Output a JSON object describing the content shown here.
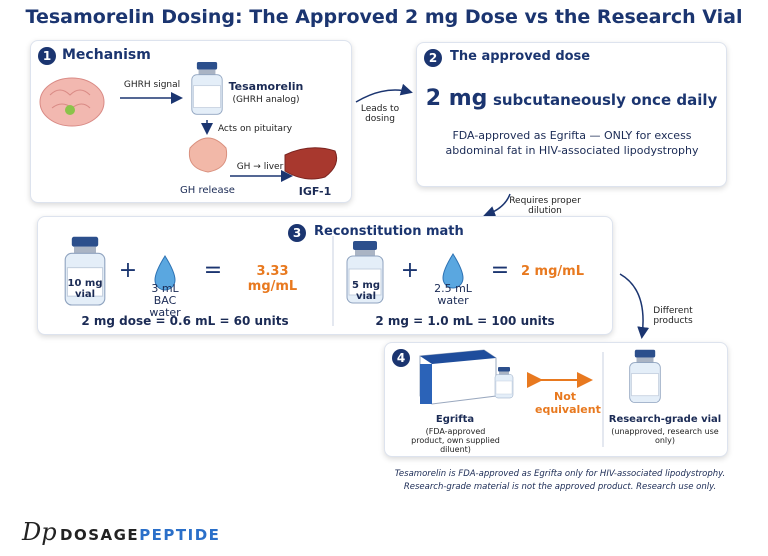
{
  "header": {
    "title": "Tesamorelin Dosing: The Approved 2 mg Dose vs the Research Vial"
  },
  "panels": [
    {
      "number": "1",
      "heading": "Mechanism",
      "labels": [
        "GHRH signal",
        "Tesamorelin",
        "(GHRH analog)",
        "Acts on pituitary",
        "GH release",
        "GH → liver",
        "IGF-1"
      ]
    },
    {
      "number": "2",
      "heading": "The approved dose",
      "dose": "2 mg",
      "dose_text": "subcutaneously once daily",
      "note": "FDA-approved as Egrifta — ONLY for excess abdominal fat in HIV-associated lipodystrophy"
    },
    {
      "number": "3",
      "heading": "Reconstitution math",
      "left": {
        "vial": "10 mg vial",
        "plus": "+",
        "diluent": "3 mL BAC water",
        "equals": "=",
        "result": "3.33 mg/mL",
        "dose": "2 mg dose = 0.6 mL = 60 units"
      },
      "right": {
        "vial": "5 mg vial",
        "plus": "+",
        "diluent": "2.5 mL water",
        "equals": "=",
        "result": "2 mg/mL",
        "dose": "2 mg = 1.0 mL = 100 units"
      }
    },
    {
      "number": "4",
      "left_title": "Egrifta",
      "left_note": "(FDA-approved product, own supplied diluent)",
      "middle": "Not equivalent",
      "right_title": "Research-grade vial",
      "right_note": "(unapproved, research use only)"
    }
  ],
  "connectors": [
    "Leads to dosing",
    "Requires proper dilution",
    "Different products"
  ],
  "footnote": [
    "Tesamorelin is FDA-approved as Egrifta only for HIV-associated lipodystrophy.",
    "Research-grade material is not the approved product. Research use only."
  ],
  "brand": {
    "mark": "Dp",
    "name_dark": "DOSAGE",
    "name_blue": "PEPTIDE"
  }
}
